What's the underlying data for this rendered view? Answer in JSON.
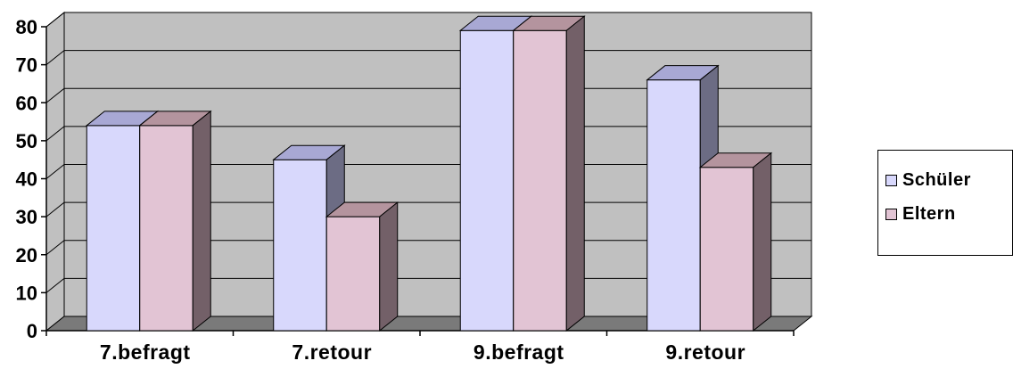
{
  "chart_data": {
    "type": "bar",
    "categories": [
      "7.befragt",
      "7.retour",
      "9.befragt",
      "9.retour"
    ],
    "series": [
      {
        "name": "Schüler",
        "values": [
          54,
          45,
          79,
          66
        ],
        "color": "#d8d8fc",
        "side_color": "#6c6c84",
        "top_color": "#a8a8d4"
      },
      {
        "name": "Eltern",
        "values": [
          54,
          30,
          79,
          43
        ],
        "color": "#e2c4d4",
        "side_color": "#736068",
        "top_color": "#b4949e"
      }
    ],
    "ylim": [
      0,
      80
    ],
    "yticks": [
      "0",
      "10",
      "20",
      "30",
      "40",
      "50",
      "60",
      "70",
      "80"
    ],
    "grid": true,
    "wall_color": "#c0c0c0",
    "floor_color": "#7a7a7a",
    "legend_position": "right",
    "title": "",
    "xlabel": "",
    "ylabel": ""
  }
}
